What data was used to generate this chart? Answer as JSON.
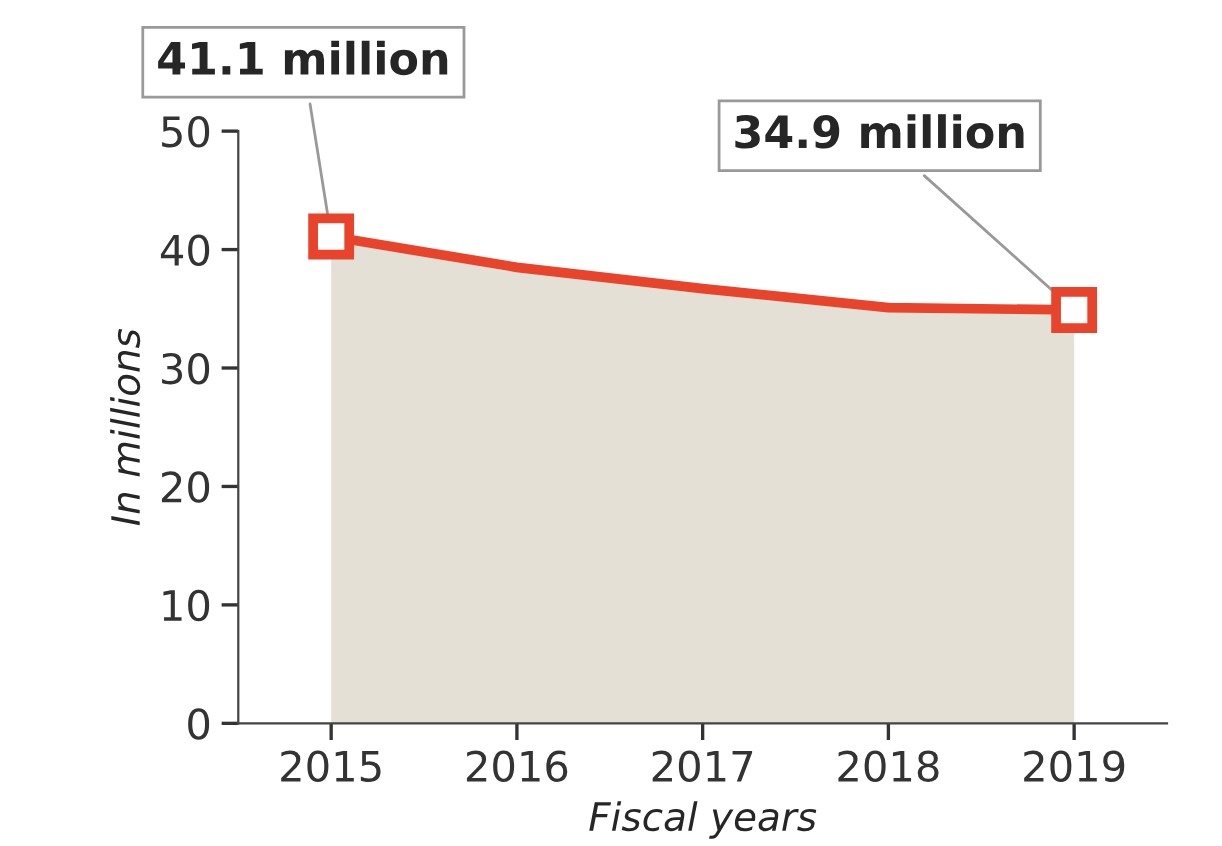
{
  "chart_data": {
    "type": "area",
    "xlabel": "Fiscal years",
    "ylabel": "In millions",
    "categories": [
      "2015",
      "2016",
      "2017",
      "2018",
      "2019"
    ],
    "series": [
      {
        "color": "#e5e0d5",
        "values": [
          41.1,
          38.5,
          36.7,
          35.1,
          34.9
        ]
      }
    ],
    "ylim": [
      0,
      50
    ],
    "yticks": [
      0,
      10,
      20,
      30,
      40,
      50
    ],
    "grid": false,
    "legend": false,
    "annotations": [
      {
        "text": "41.1 million",
        "x": "2015",
        "y": 41.1
      },
      {
        "text": "34.9 million",
        "x": "2019",
        "y": 34.9
      }
    ]
  }
}
